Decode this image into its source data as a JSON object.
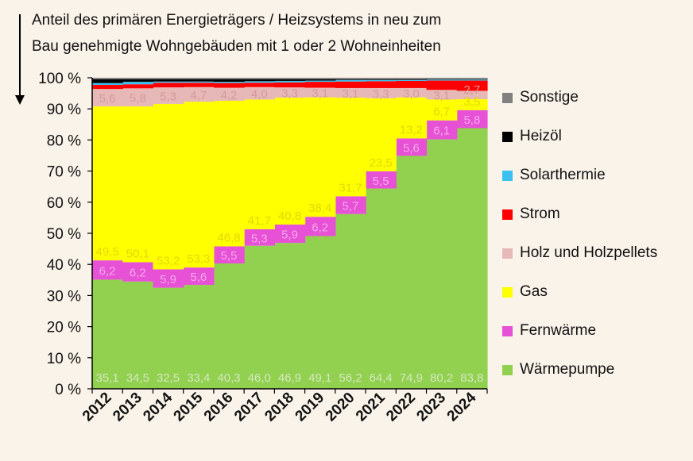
{
  "chart_data": {
    "type": "bar",
    "stacked": true,
    "title": "Anteil des primären Energieträgers  / Heizsystems in neu zum Bau genehmigte Wohngebäuden mit 1 oder 2 Wohneinheiten",
    "title_lines": [
      "Anteil des primären Energieträgers  / Heizsystems in neu zum",
      "Bau genehmigte Wohngebäuden mit 1 oder 2 Wohneinheiten"
    ],
    "categories": [
      "2012",
      "2013",
      "2014",
      "2015",
      "2016",
      "2017",
      "2018",
      "2019",
      "2020",
      "2021",
      "2022",
      "2023",
      "2024"
    ],
    "ylim": [
      0,
      100
    ],
    "yticks": [
      "0 %",
      "10 %",
      "20 %",
      "30 %",
      "40 %",
      "50 %",
      "60 %",
      "70 %",
      "80 %",
      "90 %",
      "100 %"
    ],
    "legend_position": "right",
    "series": [
      {
        "name": "Wärmepumpe",
        "color": "#92d050",
        "label_color": "#d4e8bf",
        "labeled": true,
        "values": [
          35.1,
          34.5,
          32.5,
          33.4,
          40.3,
          46.0,
          46.9,
          49.1,
          56.2,
          64.4,
          74.9,
          80.2,
          83.8
        ]
      },
      {
        "name": "Fernwärme",
        "color": "#e651d6",
        "label_color": "#f5a8ea",
        "labeled": true,
        "values": [
          6.2,
          6.2,
          5.9,
          5.6,
          5.5,
          5.3,
          5.9,
          6.2,
          5.7,
          5.5,
          5.6,
          6.1,
          5.8
        ]
      },
      {
        "name": "Gas",
        "color": "#ffff00",
        "label_color": "#e2d800",
        "labeled": true,
        "values": [
          49.5,
          50.1,
          53.2,
          53.3,
          46.8,
          41.7,
          40.8,
          38.4,
          31.7,
          23.5,
          13.2,
          6.7,
          3.5
        ]
      },
      {
        "name": "Holz und Holzpellets",
        "color": "#e6b8b7",
        "label_color": "#d49a98",
        "labeled": true,
        "values": [
          5.6,
          5.8,
          5.3,
          4.7,
          4.2,
          4.0,
          3.3,
          3.1,
          3.1,
          3.3,
          3.0,
          3.1,
          2.7
        ]
      },
      {
        "name": "Strom",
        "color": "#ff0000",
        "labeled": false,
        "values": [
          1.3,
          1.3,
          1.5,
          1.4,
          1.5,
          1.4,
          1.6,
          1.9,
          2.1,
          2.2,
          2.3,
          3.0,
          3.3
        ]
      },
      {
        "name": "Solarthermie",
        "color": "#3cc0f0",
        "labeled": false,
        "values": [
          0.6,
          0.8,
          0.4,
          0.4,
          0.4,
          0.5,
          0.5,
          0.4,
          0.5,
          0.4,
          0.3,
          0.3,
          0.3
        ]
      },
      {
        "name": "Heizöl",
        "color": "#000000",
        "labeled": false,
        "values": [
          1.2,
          0.8,
          0.7,
          0.7,
          0.8,
          0.6,
          0.5,
          0.4,
          0.2,
          0.2,
          0.2,
          0.1,
          0.1
        ]
      },
      {
        "name": "Sonstige",
        "color": "#808080",
        "labeled": false,
        "values": [
          0.5,
          0.5,
          0.5,
          0.5,
          0.5,
          0.5,
          0.5,
          0.5,
          0.5,
          0.5,
          0.5,
          0.5,
          0.5
        ]
      }
    ]
  }
}
